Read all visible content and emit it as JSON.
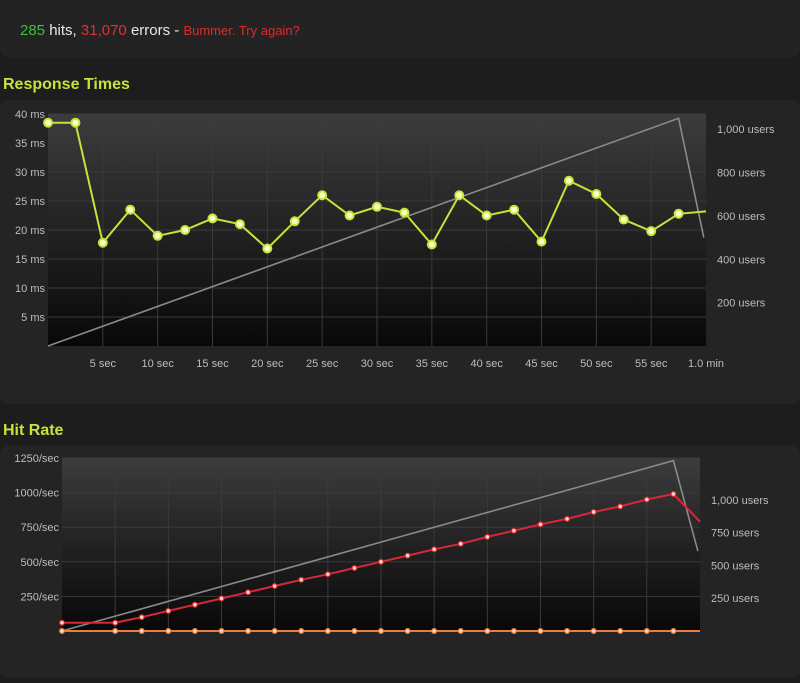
{
  "summary": {
    "hits": "285",
    "hits_label": " hits, ",
    "errors": "31,070",
    "errors_label": " errors - ",
    "message": "Bummer. Try again?"
  },
  "chart_data": [
    {
      "type": "line",
      "title": "Response Times",
      "x_tick_labels": [
        "5 sec",
        "10 sec",
        "15 sec",
        "20 sec",
        "25 sec",
        "30 sec",
        "35 sec",
        "40 sec",
        "45 sec",
        "50 sec",
        "55 sec",
        "1.0 min"
      ],
      "y_tick_labels": [
        "40 ms",
        "35 ms",
        "30 ms",
        "25 ms",
        "20 ms",
        "15 ms",
        "10 ms",
        "5 ms"
      ],
      "y2_tick_labels": [
        "1,000 users",
        "800 users",
        "600 users",
        "400 users",
        "200 users"
      ],
      "xlim": [
        0,
        60
      ],
      "ylim": [
        0,
        40
      ],
      "y2lim": [
        0,
        1070
      ],
      "series": [
        {
          "axis": "left",
          "color": "#c8e23a",
          "x": [
            0,
            2.5,
            5,
            7.5,
            10,
            12.5,
            15,
            17.5,
            20,
            22.5,
            25,
            27.5,
            30,
            32.5,
            35,
            37.5,
            40,
            42.5,
            45,
            47.5,
            50,
            52.5,
            55,
            57.5,
            60
          ],
          "values": [
            38.5,
            38.5,
            17.8,
            23.5,
            19,
            20,
            22,
            21,
            16.8,
            21.5,
            26,
            22.5,
            24,
            23,
            17.5,
            26,
            22.5,
            23.5,
            18,
            28.5,
            26.2,
            21.8,
            19.8,
            22.8,
            23.2
          ]
        },
        {
          "axis": "right",
          "color": "#8a8a8a",
          "x": [
            0,
            57.5,
            59.8
          ],
          "values": [
            0,
            1050,
            500
          ]
        }
      ]
    },
    {
      "type": "line",
      "title": "Hit Rate",
      "y_tick_labels": [
        "1250/sec",
        "1000/sec",
        "750/sec",
        "500/sec",
        "250/sec"
      ],
      "y2_tick_labels": [
        "1,000 users",
        "750 users",
        "500 users",
        "250 users"
      ],
      "xlim": [
        0,
        60
      ],
      "ylim": [
        0,
        1250
      ],
      "y2lim": [
        0,
        1320
      ],
      "series": [
        {
          "axis": "left",
          "color": "#d8263a",
          "x": [
            0,
            5,
            7.5,
            10,
            12.5,
            15,
            17.5,
            20,
            22.5,
            25,
            27.5,
            30,
            32.5,
            35,
            37.5,
            40,
            42.5,
            45,
            47.5,
            50,
            52.5,
            55,
            57.5,
            60
          ],
          "values": [
            60,
            60,
            100,
            145,
            190,
            235,
            280,
            325,
            370,
            410,
            455,
            500,
            545,
            590,
            630,
            680,
            725,
            770,
            810,
            860,
            900,
            950,
            990,
            790
          ]
        },
        {
          "axis": "left",
          "color": "#e8803a",
          "x": [
            0,
            5,
            7.5,
            10,
            12.5,
            15,
            17.5,
            20,
            22.5,
            25,
            27.5,
            30,
            32.5,
            35,
            37.5,
            40,
            42.5,
            45,
            47.5,
            50,
            52.5,
            55,
            57.5,
            60
          ],
          "values": [
            0,
            0,
            0,
            0,
            0,
            0,
            0,
            0,
            0,
            0,
            0,
            0,
            0,
            0,
            0,
            0,
            0,
            0,
            0,
            0,
            0,
            0,
            0,
            0
          ]
        },
        {
          "axis": "right",
          "color": "#8a8a8a",
          "x": [
            0,
            57.5,
            59.8
          ],
          "values": [
            0,
            1300,
            610
          ]
        }
      ]
    }
  ]
}
